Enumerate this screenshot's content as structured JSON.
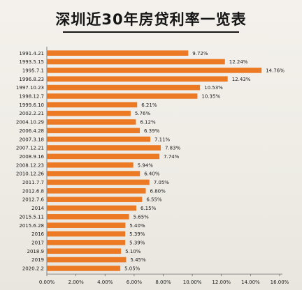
{
  "chart_data": {
    "type": "bar",
    "orientation": "horizontal",
    "title": "深圳近30年房贷利率一览表",
    "xlabel": "",
    "ylabel": "",
    "xlim": [
      0,
      16
    ],
    "x_tick_labels": [
      "0.00%",
      "2.00%",
      "4.00%",
      "6.00%",
      "8.00%",
      "10.00%",
      "12.00%",
      "14.00%",
      "16.00%"
    ],
    "categories": [
      "1991.4.21",
      "1993.5.15",
      "1995.7.1",
      "1996.8.23",
      "1997.10.23",
      "1998.12.7",
      "1999.6.10",
      "2002.2.21",
      "2004.10.29",
      "2006.4.28",
      "2007.3.18",
      "2007.12.21",
      "2008.9.16",
      "2008.12.23",
      "2010.12.26",
      "2011.7.7",
      "2012.6.8",
      "2012.7.6",
      "2014",
      "2015.5.11",
      "2015.6.28",
      "2016",
      "2017",
      "2018.9",
      "2019",
      "2020.2.2"
    ],
    "values": [
      9.72,
      12.24,
      14.76,
      12.43,
      10.53,
      10.35,
      6.21,
      5.76,
      6.12,
      6.39,
      7.11,
      7.83,
      7.74,
      5.94,
      6.4,
      7.05,
      6.8,
      6.55,
      6.15,
      5.65,
      5.4,
      5.39,
      5.39,
      5.1,
      5.45,
      5.05
    ],
    "data_labels": [
      "9.72%",
      "12.24%",
      "14.76%",
      "12.43%",
      "10.53%",
      "10.35%",
      "6.21%",
      "5.76%",
      "6.12%",
      "6.39%",
      "7.11%",
      "7.83%",
      "7.74%",
      "5.94%",
      "6.40%",
      "7.05%",
      "6.80%",
      "6.55%",
      "6.15%",
      "5.65%",
      "5.40%",
      "5.39%",
      "5.39%",
      "5.10%",
      "5.45%",
      "5.05%"
    ],
    "grid": false,
    "colors": {
      "bar": "#ec7a24",
      "text": "#1a1a1a"
    }
  }
}
